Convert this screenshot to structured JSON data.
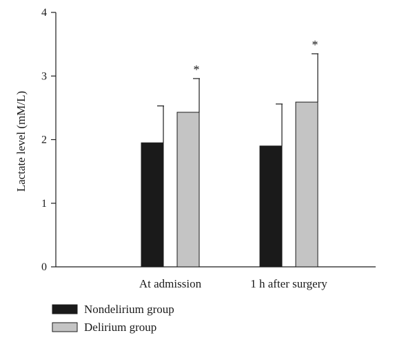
{
  "chart_data": {
    "type": "bar",
    "title": "",
    "xlabel": "",
    "ylabel": "Lactate level (mM/L)",
    "ylim": [
      0,
      4
    ],
    "yticks": [
      0,
      1,
      2,
      3,
      4
    ],
    "grid": false,
    "legend_position": "bottom-left",
    "categories": [
      "At admission",
      "1 h after surgery"
    ],
    "series": [
      {
        "name": "Nondelirium group",
        "color": "#1a1a1a",
        "values": [
          1.95,
          1.9
        ],
        "error_upper": [
          2.53,
          2.56
        ],
        "significance": [
          "",
          ""
        ]
      },
      {
        "name": "Delirium group",
        "color": "#c4c4c4",
        "values": [
          2.43,
          2.59
        ],
        "error_upper": [
          2.96,
          3.35
        ],
        "significance": [
          "*",
          "*"
        ]
      }
    ]
  }
}
